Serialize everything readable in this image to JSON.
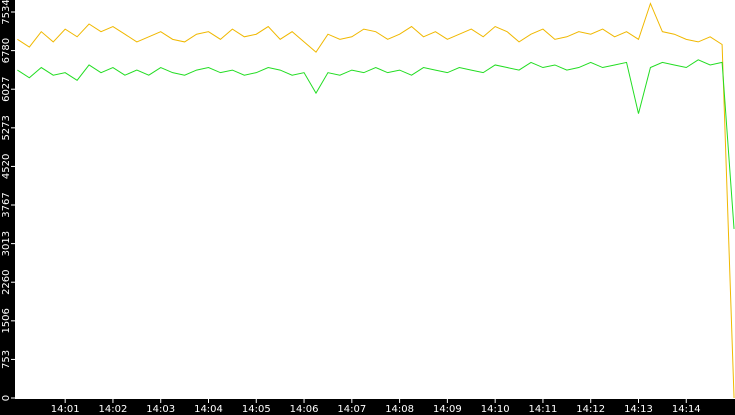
{
  "chart_data": {
    "type": "line",
    "x": [
      0,
      0.25,
      0.5,
      0.75,
      1,
      1.25,
      1.5,
      1.75,
      2,
      2.25,
      2.5,
      2.75,
      3,
      3.25,
      3.5,
      3.75,
      4,
      4.25,
      4.5,
      4.75,
      5,
      5.25,
      5.5,
      5.75,
      6,
      6.25,
      6.5,
      6.75,
      7,
      7.25,
      7.5,
      7.75,
      8,
      8.25,
      8.5,
      8.75,
      9,
      9.25,
      9.5,
      9.75,
      10,
      10.25,
      10.5,
      10.75,
      11,
      11.25,
      11.5,
      11.75,
      12,
      12.25,
      12.5,
      12.75,
      13,
      13.25,
      13.5,
      13.75,
      14,
      14.25,
      14.5,
      14.75,
      15
    ],
    "series": [
      {
        "color": "#f0b800",
        "values": [
          7000,
          6850,
          7150,
          6950,
          7200,
          7050,
          7300,
          7150,
          7250,
          7100,
          6950,
          7050,
          7150,
          7000,
          6950,
          7100,
          7150,
          7000,
          7200,
          7050,
          7100,
          7250,
          7000,
          7150,
          6950,
          6750,
          7100,
          7000,
          7050,
          7200,
          7150,
          7000,
          7100,
          7250,
          7050,
          7150,
          7000,
          7100,
          7200,
          7050,
          7250,
          7150,
          6950,
          7100,
          7200,
          7000,
          7050,
          7150,
          7100,
          7200,
          7050,
          7150,
          7000,
          7700,
          7150,
          7100,
          7000,
          6950,
          7050,
          6900,
          0
        ]
      },
      {
        "color": "#22dd22",
        "values": [
          6400,
          6250,
          6450,
          6300,
          6350,
          6200,
          6500,
          6350,
          6450,
          6300,
          6400,
          6300,
          6450,
          6350,
          6300,
          6400,
          6450,
          6350,
          6400,
          6300,
          6350,
          6450,
          6400,
          6300,
          6350,
          5950,
          6350,
          6300,
          6400,
          6350,
          6450,
          6350,
          6400,
          6300,
          6450,
          6400,
          6350,
          6450,
          6400,
          6350,
          6500,
          6450,
          6400,
          6550,
          6450,
          6500,
          6400,
          6450,
          6550,
          6450,
          6500,
          6550,
          5550,
          6450,
          6550,
          6500,
          6450,
          6600,
          6500,
          6550,
          3300
        ]
      }
    ],
    "xlim": [
      -0.05,
      15.02
    ],
    "xticks": [
      {
        "value": 1,
        "label": "14:01"
      },
      {
        "value": 2,
        "label": "14:02"
      },
      {
        "value": 3,
        "label": "14:03"
      },
      {
        "value": 4,
        "label": "14:04"
      },
      {
        "value": 5,
        "label": "14:05"
      },
      {
        "value": 6,
        "label": "14:06"
      },
      {
        "value": 7,
        "label": "14:07"
      },
      {
        "value": 8,
        "label": "14:08"
      },
      {
        "value": 9,
        "label": "14:09"
      },
      {
        "value": 10,
        "label": "14:10"
      },
      {
        "value": 11,
        "label": "14:11"
      },
      {
        "value": 12,
        "label": "14:12"
      },
      {
        "value": 13,
        "label": "14:13"
      },
      {
        "value": 14,
        "label": "14:14"
      }
    ],
    "ylim": [
      0,
      7768
    ],
    "yticks": [
      0,
      753,
      1506,
      2260,
      3013,
      3767,
      4520,
      5273,
      6027,
      6780,
      7534
    ]
  }
}
